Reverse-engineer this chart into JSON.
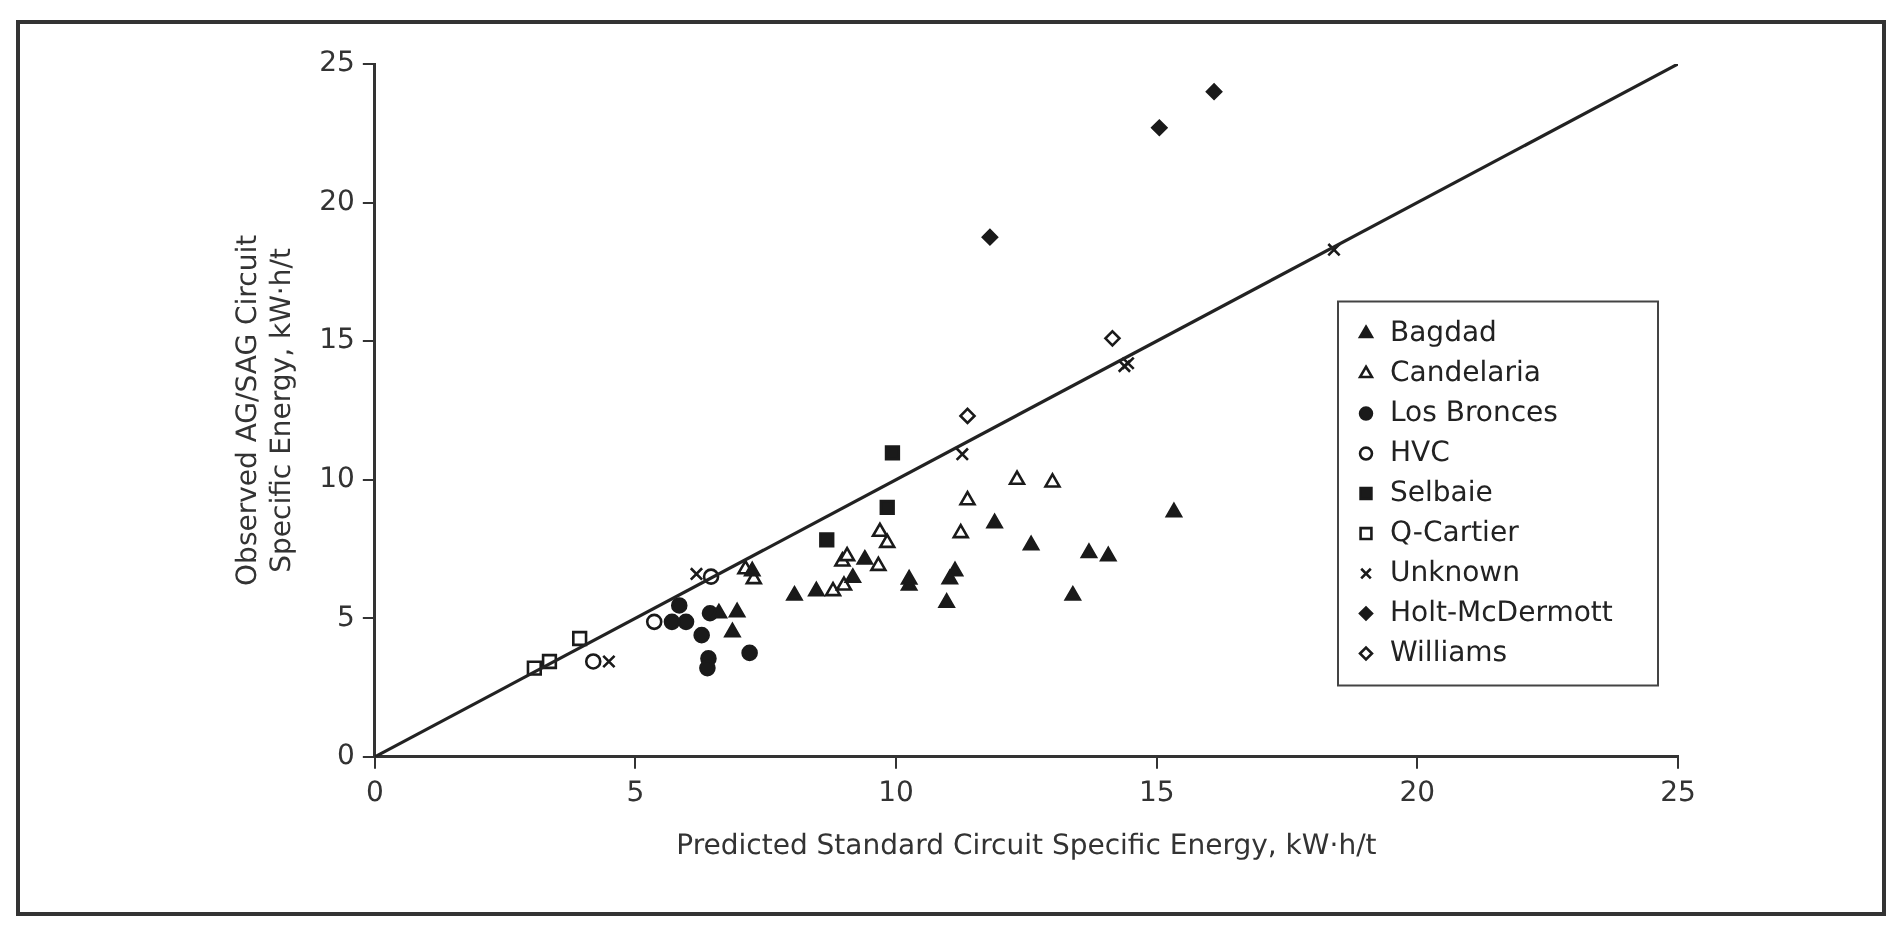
{
  "chart_data": {
    "type": "scatter",
    "xlabel": "Predicted Standard Circuit Specific Energy, kW·h/t",
    "ylabel": "Observed AG/SAG Circuit\nSpecific Energy, kW·h/t",
    "xlim": [
      0,
      25
    ],
    "ylim": [
      0,
      25
    ],
    "xticks": [
      0,
      5,
      10,
      15,
      20,
      25
    ],
    "yticks": [
      0,
      5,
      10,
      15,
      20,
      25
    ],
    "grid": false,
    "legend": "right",
    "series": [
      {
        "type": "line",
        "color": "#222222",
        "marker": "none",
        "x": [
          0,
          25
        ],
        "values": [
          0,
          25
        ]
      },
      {
        "name": "Bagdad",
        "color": "#1a1a1a",
        "marker": "triangle",
        "x": [
          11.89,
          12.59,
          13.7,
          14.07,
          13.39,
          15.33,
          10.97,
          11.03,
          11.13,
          10.25,
          10.25,
          9.4,
          9.17,
          8.47,
          8.05,
          6.95,
          6.86,
          7.24,
          6.6
        ],
        "values": [
          8.43,
          7.64,
          7.36,
          7.24,
          5.82,
          8.83,
          5.56,
          6.41,
          6.7,
          6.18,
          6.4,
          7.12,
          6.46,
          5.98,
          5.82,
          5.22,
          4.5,
          6.7,
          5.18
        ]
      },
      {
        "name": "Candelaria",
        "color": "#1a1a1a",
        "marker": "triangle-open",
        "x": [
          12.32,
          13.0,
          11.37,
          11.24,
          9.69,
          9.83,
          9.66,
          8.97,
          9.06,
          8.79,
          7.27,
          7.11,
          9.0
        ],
        "values": [
          10.0,
          9.9,
          9.26,
          8.07,
          8.12,
          7.72,
          6.89,
          7.05,
          7.24,
          5.98,
          6.41,
          6.77,
          6.18
        ]
      },
      {
        "name": "Los Bronces",
        "color": "#1a1a1a",
        "marker": "circle",
        "x": [
          5.84,
          5.97,
          5.7,
          6.27,
          6.4,
          6.38,
          7.19,
          6.43
        ],
        "values": [
          5.46,
          4.87,
          4.87,
          4.39,
          3.55,
          3.2,
          3.75,
          5.18
        ]
      },
      {
        "name": "HVC",
        "color": "#1a1a1a",
        "marker": "circle-open",
        "x": [
          4.19,
          5.36,
          6.45
        ],
        "values": [
          3.44,
          4.87,
          6.5
        ]
      },
      {
        "name": "Selbaie",
        "color": "#1a1a1a",
        "marker": "square",
        "x": [
          9.93,
          9.83,
          8.67
        ],
        "values": [
          10.97,
          9.0,
          7.83
        ]
      },
      {
        "name": "Q-Cartier",
        "color": "#1a1a1a",
        "marker": "square-open",
        "x": [
          3.06,
          3.35,
          3.93
        ],
        "values": [
          3.2,
          3.44,
          4.27
        ]
      },
      {
        "name": "Unknown",
        "color": "#1a1a1a",
        "marker": "cross",
        "x": [
          4.49,
          6.17,
          11.27,
          14.38,
          14.45,
          18.4
        ],
        "values": [
          3.44,
          6.6,
          10.92,
          14.1,
          14.2,
          18.3
        ]
      },
      {
        "name": "Holt-McDermott",
        "color": "#1a1a1a",
        "marker": "diamond",
        "x": [
          11.8,
          15.05,
          16.1
        ],
        "values": [
          18.75,
          22.7,
          24.0
        ]
      },
      {
        "name": "Williams",
        "color": "#1a1a1a",
        "marker": "diamond-open",
        "x": [
          11.37,
          14.15
        ],
        "values": [
          12.3,
          15.1
        ]
      }
    ]
  }
}
